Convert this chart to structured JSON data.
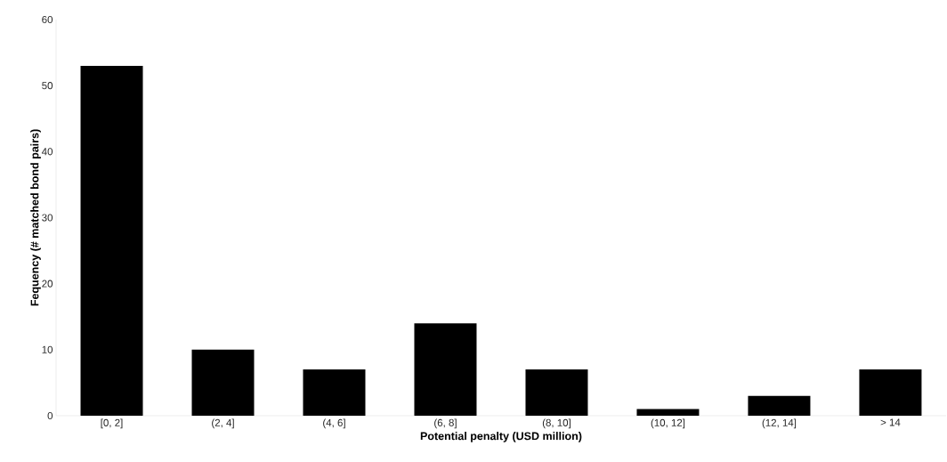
{
  "chart_data": {
    "type": "bar",
    "xlabel": "Potential penalty (USD million)",
    "ylabel": "Fequency (# matched bond pairs)",
    "categories": [
      "[0, 2]",
      "(2, 4]",
      "(4, 6]",
      "(6, 8]",
      "(8, 10]",
      "(10, 12]",
      "(12, 14]",
      "> 14"
    ],
    "values": [
      53,
      10,
      7,
      14,
      7,
      1,
      3,
      7
    ],
    "color": "#000000",
    "ylim": [
      0,
      60
    ],
    "yticks": [
      0,
      10,
      20,
      30,
      40,
      50,
      60
    ]
  }
}
